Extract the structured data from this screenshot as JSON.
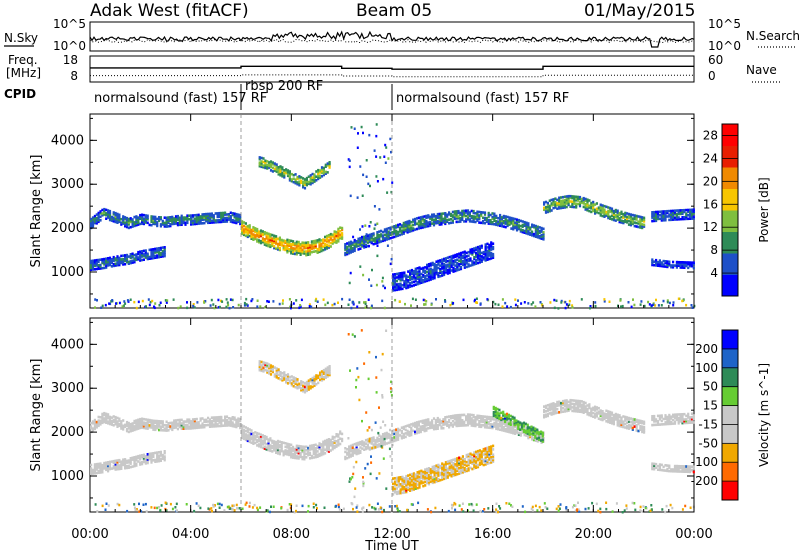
{
  "header": {
    "title_left": "Adak West (fitACF)",
    "title_center": "Beam 05",
    "title_right": "01/May/2015"
  },
  "strip": {
    "nsky_label": "N.Sky",
    "nsearch_label": "N.Search",
    "freq_label_1": "Freq.",
    "freq_label_2": "[MHz]",
    "nave_label": "Nave",
    "cpid_label": "CPID",
    "noise_ticks_left": [
      "10^5",
      "10^0"
    ],
    "noise_ticks_right": [
      "10^5",
      "10^0"
    ],
    "freq_ticks": [
      "18",
      "8"
    ],
    "nave_ticks": [
      "60",
      "0"
    ],
    "modes": [
      {
        "label": "normalsound (fast) 157 RF",
        "start": 0,
        "end": 6
      },
      {
        "label": "rbsp 200 RF",
        "start": 6,
        "end": 12
      },
      {
        "label": "normalsound (fast) 157 RF",
        "start": 12,
        "end": 24
      }
    ],
    "frequency_mhz": [
      {
        "start": 0,
        "end": 6,
        "value": 13.5
      },
      {
        "start": 6,
        "end": 10,
        "value": 14.2
      },
      {
        "start": 10,
        "end": 12,
        "value": 13.3
      },
      {
        "start": 12,
        "end": 18,
        "value": 12.9
      },
      {
        "start": 18,
        "end": 24,
        "value": 14.2
      }
    ],
    "nave": [
      {
        "start": 0,
        "end": 6,
        "value": 12
      },
      {
        "start": 6,
        "end": 10,
        "value": 14
      },
      {
        "start": 10,
        "end": 12,
        "value": 11
      },
      {
        "start": 12,
        "end": 18,
        "value": 9
      },
      {
        "start": 18,
        "end": 24,
        "value": 13
      }
    ]
  },
  "chart_data": [
    {
      "type": "heatmap",
      "name": "power",
      "xlabel": "Time UT",
      "ylabel": "Slant Range [km]",
      "xlim": [
        0,
        24
      ],
      "ylim": [
        180,
        4600
      ],
      "x_ticks": [
        "00:00",
        "04:00",
        "08:00",
        "12:00",
        "16:00",
        "20:00",
        "00:00"
      ],
      "y_ticks": [
        "1000",
        "2000",
        "3000",
        "4000"
      ],
      "colorbar": {
        "label": "Power [dB]",
        "ticks": [
          "28",
          "24",
          "20",
          "16",
          "12",
          "8",
          "4"
        ],
        "range": [
          0,
          30
        ],
        "colors": [
          "#0000ff",
          "#1e50c8",
          "#2e8b57",
          "#7fbf3f",
          "#f7c600",
          "#f08a00",
          "#e81e00",
          "#ff0000"
        ]
      },
      "bands": [
        {
          "times": [
            0,
            0.5,
            1,
            1.5,
            2,
            2.5,
            3,
            3.5,
            4,
            4.5,
            5,
            5.5,
            6
          ],
          "ranges": [
            2150,
            2380,
            2280,
            2150,
            2250,
            2200,
            2180,
            2220,
            2230,
            2260,
            2280,
            2300,
            2230
          ],
          "width": 230,
          "power": 9
        },
        {
          "times": [
            6,
            6.5,
            7,
            7.5,
            8,
            8.5,
            9,
            9.5,
            10
          ],
          "ranges": [
            2050,
            1900,
            1780,
            1680,
            1600,
            1560,
            1620,
            1750,
            1950
          ],
          "width": 300,
          "power": 22
        },
        {
          "times": [
            6.7,
            7,
            7.5,
            8,
            8.5,
            9,
            9.5
          ],
          "ranges": [
            3550,
            3500,
            3350,
            3200,
            3050,
            3250,
            3450
          ],
          "width": 220,
          "power": 15
        },
        {
          "times": [
            0,
            0.5,
            1,
            1.5,
            2,
            2.5,
            3
          ],
          "ranges": [
            1180,
            1220,
            1280,
            1320,
            1400,
            1450,
            1500
          ],
          "width": 200,
          "power": 8
        },
        {
          "times": [
            10.1,
            10.5,
            11,
            11.5,
            12,
            12.5,
            13,
            13.5,
            14,
            14.5,
            15,
            15.5,
            16,
            16.5,
            17,
            17.5,
            18
          ],
          "ranges": [
            1550,
            1650,
            1750,
            1850,
            1950,
            2050,
            2150,
            2220,
            2250,
            2300,
            2320,
            2280,
            2250,
            2180,
            2100,
            2000,
            1900
          ],
          "width": 260,
          "power": 10
        },
        {
          "times": [
            12,
            12.5,
            13,
            13.5,
            14,
            14.5,
            15,
            15.5,
            16
          ],
          "ranges": [
            800,
            850,
            950,
            1050,
            1150,
            1250,
            1350,
            1450,
            1550
          ],
          "width": 380,
          "power": 6
        },
        {
          "times": [
            18,
            18.5,
            19,
            19.5,
            20,
            20.5,
            21,
            21.5,
            22
          ],
          "ranges": [
            2500,
            2600,
            2650,
            2620,
            2500,
            2400,
            2300,
            2220,
            2150
          ],
          "width": 260,
          "power": 14
        },
        {
          "times": [
            22.3,
            22.8,
            23.3,
            24
          ],
          "ranges": [
            2300,
            2320,
            2340,
            2360
          ],
          "width": 220,
          "power": 8
        },
        {
          "times": [
            22.3,
            23,
            24
          ],
          "ranges": [
            1250,
            1200,
            1180
          ],
          "width": 120,
          "power": 6
        }
      ]
    },
    {
      "type": "heatmap",
      "name": "velocity",
      "xlabel": "Time UT",
      "ylabel": "Slant Range [km]",
      "xlim": [
        0,
        24
      ],
      "ylim": [
        180,
        4600
      ],
      "x_ticks": [
        "00:00",
        "04:00",
        "08:00",
        "12:00",
        "16:00",
        "20:00",
        "00:00"
      ],
      "y_ticks": [
        "1000",
        "2000",
        "3000",
        "4000"
      ],
      "colorbar": {
        "label": "Velocity [m s^-1]",
        "ticks": [
          "200",
          "100",
          "50",
          "15",
          "-15",
          "-50",
          "-100",
          "-200"
        ],
        "range": [
          -200,
          200
        ],
        "colors": [
          "#ff0000",
          "#ff6a00",
          "#f0a800",
          "#c8c8c8",
          "#c8c8c8",
          "#66cc33",
          "#2e8b57",
          "#1e64c8",
          "#0000ff"
        ]
      },
      "bands": [
        {
          "times": [
            0,
            0.5,
            1,
            1.5,
            2,
            2.5,
            3,
            3.5,
            4,
            4.5,
            5,
            5.5,
            6
          ],
          "ranges": [
            2150,
            2380,
            2280,
            2150,
            2250,
            2200,
            2180,
            2220,
            2230,
            2260,
            2280,
            2300,
            2230
          ],
          "width": 230,
          "velocity": 0
        },
        {
          "times": [
            6,
            6.5,
            7,
            7.5,
            8,
            8.5,
            9,
            9.5,
            10
          ],
          "ranges": [
            2050,
            1900,
            1780,
            1680,
            1600,
            1560,
            1620,
            1750,
            1950
          ],
          "width": 300,
          "velocity": 0
        },
        {
          "times": [
            6.7,
            7,
            7.5,
            8,
            8.5,
            9,
            9.5
          ],
          "ranges": [
            3550,
            3500,
            3350,
            3200,
            3050,
            3250,
            3450
          ],
          "width": 220,
          "velocity": -60
        },
        {
          "times": [
            0,
            0.5,
            1,
            1.5,
            2,
            2.5,
            3
          ],
          "ranges": [
            1180,
            1220,
            1280,
            1320,
            1400,
            1450,
            1500
          ],
          "width": 200,
          "velocity": 0
        },
        {
          "times": [
            10.1,
            10.5,
            11,
            11.5,
            12,
            12.5,
            13,
            13.5,
            14,
            14.5,
            15,
            15.5,
            16,
            16.5,
            17,
            17.5,
            18
          ],
          "ranges": [
            1550,
            1650,
            1750,
            1850,
            1950,
            2050,
            2150,
            2220,
            2250,
            2300,
            2320,
            2280,
            2250,
            2180,
            2100,
            2000,
            1900
          ],
          "width": 260,
          "velocity": 0
        },
        {
          "times": [
            12,
            12.5,
            13,
            13.5,
            14,
            14.5,
            15,
            15.5,
            16
          ],
          "ranges": [
            800,
            850,
            950,
            1050,
            1150,
            1250,
            1350,
            1450,
            1550
          ],
          "width": 380,
          "velocity": -70
        },
        {
          "times": [
            16,
            16.5,
            17,
            17.5,
            18
          ],
          "ranges": [
            2500,
            2350,
            2200,
            2050,
            1900
          ],
          "width": 200,
          "velocity": 60
        },
        {
          "times": [
            18,
            18.5,
            19,
            19.5,
            20,
            20.5,
            21,
            21.5,
            22
          ],
          "ranges": [
            2500,
            2600,
            2650,
            2620,
            2500,
            2400,
            2300,
            2220,
            2150
          ],
          "width": 260,
          "velocity": 0
        },
        {
          "times": [
            22.3,
            22.8,
            23.3,
            24
          ],
          "ranges": [
            2300,
            2320,
            2340,
            2360
          ],
          "width": 220,
          "velocity": 0
        },
        {
          "times": [
            22.3,
            23,
            24
          ],
          "ranges": [
            1250,
            1200,
            1180
          ],
          "width": 120,
          "velocity": 0
        }
      ]
    }
  ]
}
